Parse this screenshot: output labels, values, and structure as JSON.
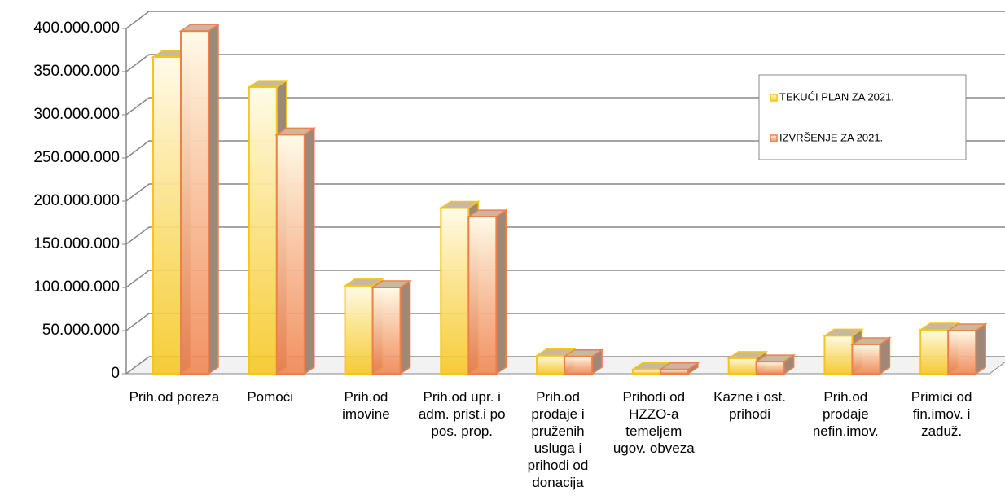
{
  "chart_data": {
    "type": "bar3d",
    "categories": [
      "Prih.od poreza",
      "Pomoći",
      "Prih.od imovine",
      "Prih.od upr. i adm. prist.i po pos. prop.",
      "Prih.od prodaje i pruženih usluga i prihodi od donacija",
      "Prihodi od HZZO-a temeljem ugov. obveza",
      "Kazne i ost. prihodi",
      "Prih.od prodaje nefin.imov.",
      "Primici od fin.imov. i zaduž."
    ],
    "series": [
      {
        "name": "TEKUĆI PLAN ZA 2021.",
        "color": "#f5c518",
        "values": [
          367000000,
          332000000,
          102000000,
          192000000,
          21000000,
          5000000,
          18000000,
          44000000,
          51000000
        ]
      },
      {
        "name": "IZVRŠENJE ZA 2021.",
        "color": "#f0804a",
        "values": [
          397000000,
          277000000,
          100000000,
          182000000,
          20000000,
          5000000,
          14000000,
          34000000,
          50000000
        ]
      }
    ],
    "ylim": [
      0,
      400000000
    ],
    "yticks": [
      0,
      {
        "value": 50000000,
        "label": "50.000.000"
      },
      {
        "value": 100000000,
        "label": "100.000.000"
      },
      {
        "value": 150000000,
        "label": "150.000.000"
      },
      {
        "value": 200000000,
        "label": "200.000.000"
      },
      {
        "value": 250000000,
        "label": "250.000.000"
      },
      {
        "value": 300000000,
        "label": "300.000.000"
      },
      {
        "value": 350000000,
        "label": "350.000.000"
      },
      {
        "value": 400000000,
        "label": "400.000.000"
      }
    ],
    "grid": true,
    "legend": "top-right"
  }
}
